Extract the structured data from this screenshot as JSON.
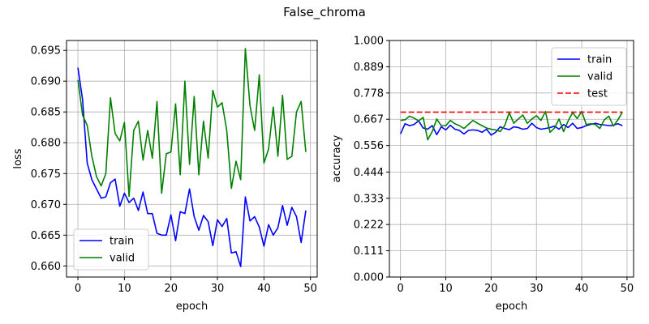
{
  "figure": {
    "title": "False_chroma"
  },
  "colors": {
    "train": "#0000ff",
    "valid": "#008000",
    "test": "#ff0000",
    "grid": "#b0b0b0"
  },
  "chart_data": [
    {
      "type": "line",
      "xlabel": "epoch",
      "ylabel": "loss",
      "xlim": [
        -2.45,
        51.45
      ],
      "ylim": [
        0.6582,
        0.6966
      ],
      "xticks": [
        0,
        10,
        20,
        30,
        40,
        50
      ],
      "yticks": [
        0.66,
        0.665,
        0.67,
        0.675,
        0.68,
        0.685,
        0.69,
        0.695
      ],
      "ytick_labels": [
        "0.660",
        "0.665",
        "0.670",
        "0.675",
        "0.680",
        "0.685",
        "0.690",
        "0.695"
      ],
      "grid": true,
      "legend_position": "lower-left",
      "series": [
        {
          "name": "train",
          "color": "#0000ff",
          "style": "solid",
          "x": [
            0,
            1,
            2,
            3,
            4,
            5,
            6,
            7,
            8,
            9,
            10,
            11,
            12,
            13,
            14,
            15,
            16,
            17,
            18,
            19,
            20,
            21,
            22,
            23,
            24,
            25,
            26,
            27,
            28,
            29,
            30,
            31,
            32,
            33,
            34,
            35,
            36,
            37,
            38,
            39,
            40,
            41,
            42,
            43,
            44,
            45,
            46,
            47,
            48,
            49
          ],
          "values": [
            0.6922,
            0.687,
            0.6767,
            0.674,
            0.6725,
            0.671,
            0.6712,
            0.6735,
            0.6741,
            0.6697,
            0.6718,
            0.6703,
            0.671,
            0.669,
            0.672,
            0.6685,
            0.6685,
            0.6653,
            0.665,
            0.665,
            0.6683,
            0.6641,
            0.6688,
            0.6685,
            0.6725,
            0.668,
            0.6658,
            0.6682,
            0.6672,
            0.6633,
            0.6675,
            0.6664,
            0.6677,
            0.6621,
            0.6623,
            0.6599,
            0.6712,
            0.6673,
            0.668,
            0.6663,
            0.6632,
            0.6667,
            0.665,
            0.6662,
            0.6698,
            0.6666,
            0.6695,
            0.668,
            0.6638,
            0.669
          ]
        },
        {
          "name": "valid",
          "color": "#008000",
          "style": "solid",
          "x": [
            0,
            1,
            2,
            3,
            4,
            5,
            6,
            7,
            8,
            9,
            10,
            11,
            12,
            13,
            14,
            15,
            16,
            17,
            18,
            19,
            20,
            21,
            22,
            23,
            24,
            25,
            26,
            27,
            28,
            29,
            30,
            31,
            32,
            33,
            34,
            35,
            36,
            37,
            38,
            39,
            40,
            41,
            42,
            43,
            44,
            45,
            46,
            47,
            48,
            49
          ],
          "values": [
            0.6902,
            0.6845,
            0.6828,
            0.6778,
            0.6745,
            0.673,
            0.675,
            0.6873,
            0.6815,
            0.6803,
            0.6833,
            0.6713,
            0.682,
            0.6835,
            0.6772,
            0.682,
            0.6775,
            0.6867,
            0.6718,
            0.6782,
            0.6785,
            0.6863,
            0.6748,
            0.69,
            0.6765,
            0.6875,
            0.6748,
            0.6835,
            0.6775,
            0.6885,
            0.6858,
            0.6865,
            0.682,
            0.6726,
            0.677,
            0.674,
            0.6953,
            0.686,
            0.682,
            0.691,
            0.6767,
            0.679,
            0.6858,
            0.6778,
            0.6877,
            0.6773,
            0.6778,
            0.685,
            0.6867,
            0.6785
          ]
        }
      ]
    },
    {
      "type": "line",
      "xlabel": "epoch",
      "ylabel": "accuracy",
      "xlim": [
        -2.45,
        51.45
      ],
      "ylim": [
        0.0,
        1.0
      ],
      "xticks": [
        0,
        10,
        20,
        30,
        40,
        50
      ],
      "yticks": [
        0.0,
        0.111,
        0.222,
        0.333,
        0.444,
        0.556,
        0.667,
        0.778,
        0.889,
        1.0
      ],
      "ytick_labels": [
        "0.000",
        "0.111",
        "0.222",
        "0.333",
        "0.444",
        "0.556",
        "0.667",
        "0.778",
        "0.889",
        "1.000"
      ],
      "grid": true,
      "legend_position": "top-right",
      "series": [
        {
          "name": "train",
          "color": "#0000ff",
          "style": "solid",
          "x": [
            0,
            1,
            2,
            3,
            4,
            5,
            6,
            7,
            8,
            9,
            10,
            11,
            12,
            13,
            14,
            15,
            16,
            17,
            18,
            19,
            20,
            21,
            22,
            23,
            24,
            25,
            26,
            27,
            28,
            29,
            30,
            31,
            32,
            33,
            34,
            35,
            36,
            37,
            38,
            39,
            40,
            41,
            42,
            43,
            44,
            45,
            46,
            47,
            48,
            49
          ],
          "values": [
            0.605,
            0.648,
            0.64,
            0.645,
            0.66,
            0.63,
            0.625,
            0.64,
            0.602,
            0.635,
            0.622,
            0.642,
            0.625,
            0.62,
            0.605,
            0.62,
            0.622,
            0.62,
            0.612,
            0.625,
            0.6,
            0.612,
            0.635,
            0.628,
            0.623,
            0.635,
            0.632,
            0.625,
            0.628,
            0.65,
            0.632,
            0.625,
            0.628,
            0.632,
            0.638,
            0.625,
            0.645,
            0.632,
            0.65,
            0.628,
            0.632,
            0.64,
            0.645,
            0.65,
            0.645,
            0.643,
            0.64,
            0.642,
            0.648,
            0.64
          ]
        },
        {
          "name": "valid",
          "color": "#008000",
          "style": "solid",
          "x": [
            0,
            1,
            2,
            3,
            4,
            5,
            6,
            7,
            8,
            9,
            10,
            11,
            12,
            13,
            14,
            15,
            16,
            17,
            18,
            19,
            20,
            21,
            22,
            23,
            24,
            25,
            26,
            27,
            28,
            29,
            30,
            31,
            32,
            33,
            34,
            35,
            36,
            37,
            38,
            39,
            40,
            41,
            42,
            43,
            44,
            45,
            46,
            47,
            48,
            49
          ],
          "values": [
            0.662,
            0.665,
            0.68,
            0.672,
            0.66,
            0.675,
            0.58,
            0.615,
            0.668,
            0.64,
            0.64,
            0.662,
            0.648,
            0.64,
            0.628,
            0.645,
            0.662,
            0.65,
            0.64,
            0.63,
            0.625,
            0.622,
            0.615,
            0.64,
            0.695,
            0.65,
            0.668,
            0.685,
            0.65,
            0.668,
            0.682,
            0.662,
            0.7,
            0.612,
            0.63,
            0.668,
            0.615,
            0.66,
            0.695,
            0.67,
            0.7,
            0.645,
            0.648,
            0.645,
            0.628,
            0.665,
            0.68,
            0.638,
            0.665,
            0.698
          ]
        },
        {
          "name": "test",
          "color": "#ff0000",
          "style": "dashed",
          "x": [
            0,
            49
          ],
          "values": [
            0.697,
            0.697
          ]
        }
      ]
    }
  ]
}
